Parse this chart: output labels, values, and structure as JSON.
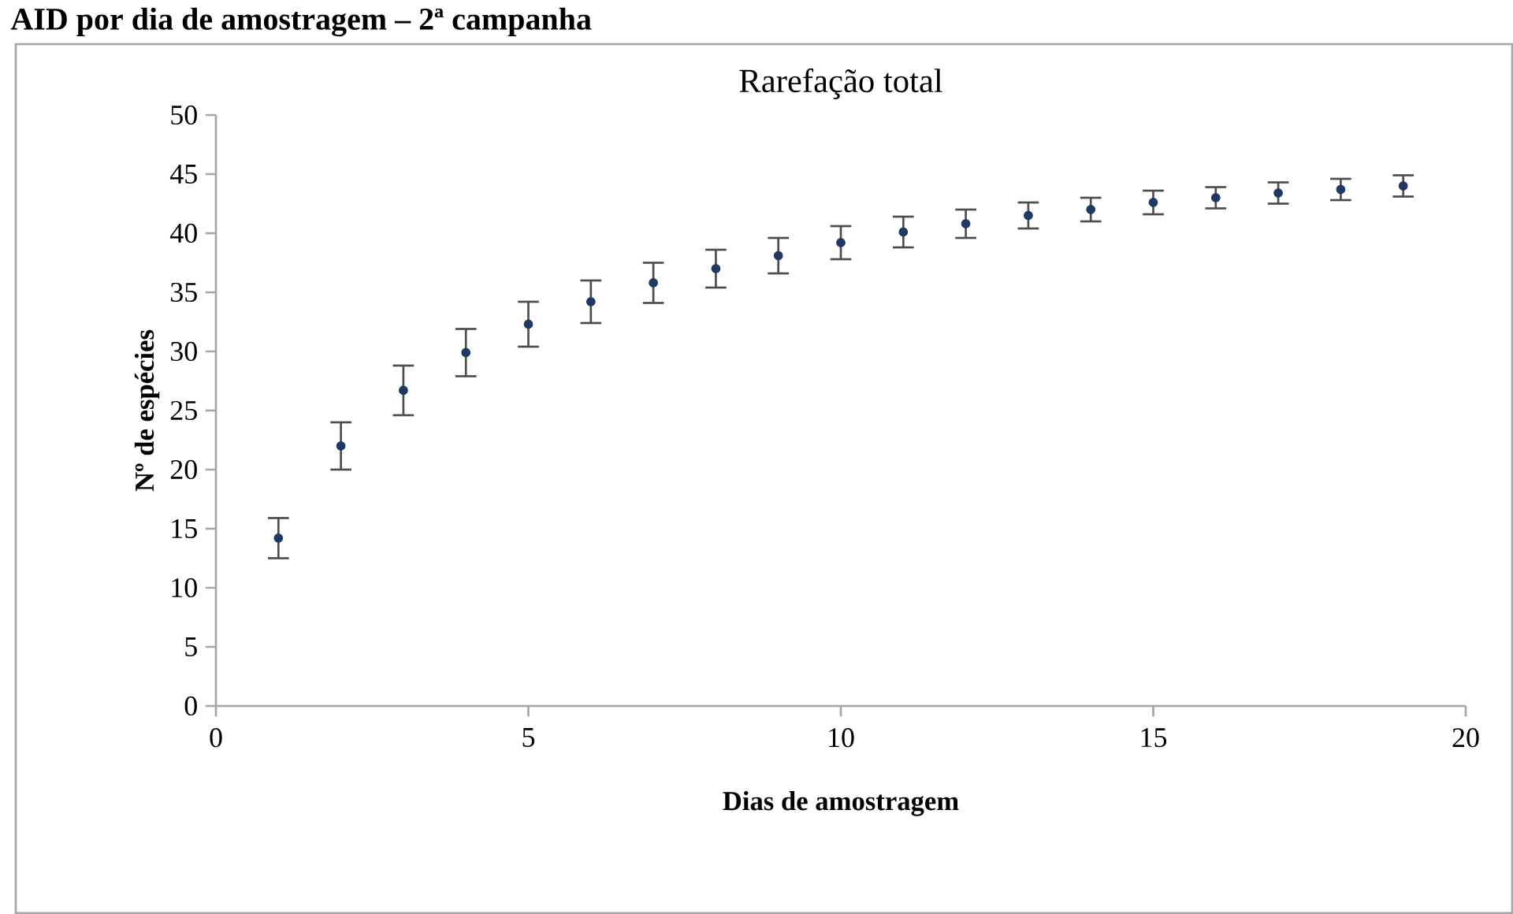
{
  "chart_data": {
    "type": "scatter",
    "title": "Rarefação total",
    "xlabel": "Dias de amostragem",
    "ylabel": "Nº de espécies",
    "annotations": [
      "AID por dia de amostragem – 2ª campanha"
    ],
    "x": [
      1,
      2,
      3,
      4,
      5,
      6,
      7,
      8,
      9,
      10,
      11,
      12,
      13,
      14,
      15,
      16,
      17,
      18,
      19
    ],
    "values": [
      14.2,
      22,
      26.7,
      29.9,
      32.3,
      34.2,
      35.8,
      37,
      38.1,
      39.2,
      40.1,
      40.8,
      41.5,
      42.0,
      42.6,
      43.0,
      43.4,
      43.7,
      44.0
    ],
    "errors": [
      1.7,
      2,
      2.1,
      2,
      1.9,
      1.8,
      1.7,
      1.6,
      1.5,
      1.4,
      1.3,
      1.2,
      1.1,
      1.0,
      1.0,
      0.9,
      0.9,
      0.9,
      0.9
    ],
    "color": "#1f3864",
    "grid": false,
    "xlim": [
      0,
      20
    ],
    "ylim": [
      0,
      50
    ],
    "xticks": [
      0,
      5,
      10,
      15,
      20
    ],
    "yticks": [
      0,
      5,
      10,
      15,
      20,
      25,
      30,
      35,
      40,
      45,
      50
    ]
  }
}
